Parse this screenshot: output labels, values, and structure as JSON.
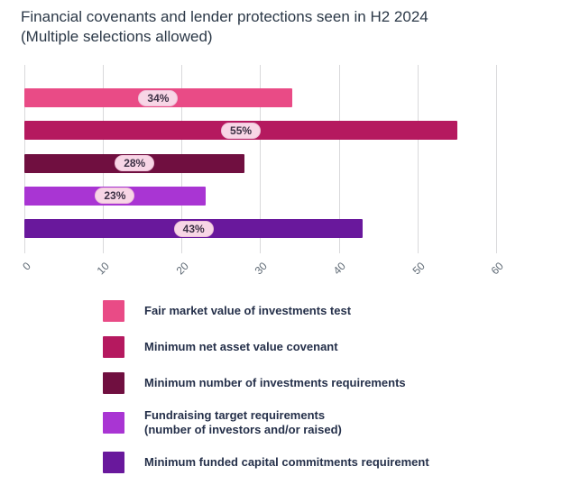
{
  "title": {
    "line1": "Financial covenants and lender protections seen in H2 2024",
    "line2": "(Multiple selections allowed)"
  },
  "chart_data": {
    "type": "bar",
    "orientation": "horizontal",
    "title": "Financial covenants and lender protections seen in H2 2024",
    "subtitle": "(Multiple selections allowed)",
    "categories": [
      "Fair market value of investments test",
      "Minimum net asset value covenant",
      "Minimum number of investments requirements",
      "Fundraising target requirements (number of investors and/or raised)",
      "Minimum funded capital commitments requirement"
    ],
    "values": [
      34,
      55,
      28,
      23,
      43
    ],
    "data_labels": [
      "34%",
      "55%",
      "28%",
      "23%",
      "43%"
    ],
    "bar_colors": [
      "#e94b86",
      "#b5195f",
      "#700f40",
      "#a935d3",
      "#69189c"
    ],
    "xlim": [
      0,
      60
    ],
    "xticks": [
      0,
      10,
      20,
      30,
      40,
      50,
      60
    ],
    "grid": true,
    "gridline_color": "#d9d9db",
    "legend_position": "bottom",
    "legend": [
      {
        "color": "#e94b86",
        "label_lines": [
          "Fair market value of investments test"
        ]
      },
      {
        "color": "#b5195f",
        "label_lines": [
          "Minimum net asset value covenant"
        ]
      },
      {
        "color": "#700f40",
        "label_lines": [
          "Minimum number of investments requirements"
        ]
      },
      {
        "color": "#a935d3",
        "label_lines": [
          "Fundraising target requirements",
          "(number of investors and/or raised)"
        ]
      },
      {
        "color": "#69189c",
        "label_lines": [
          "Minimum funded capital commitments requirement"
        ]
      }
    ],
    "label_pill": {
      "background": "#f8d6e6",
      "text_color": "#3c3044"
    }
  }
}
